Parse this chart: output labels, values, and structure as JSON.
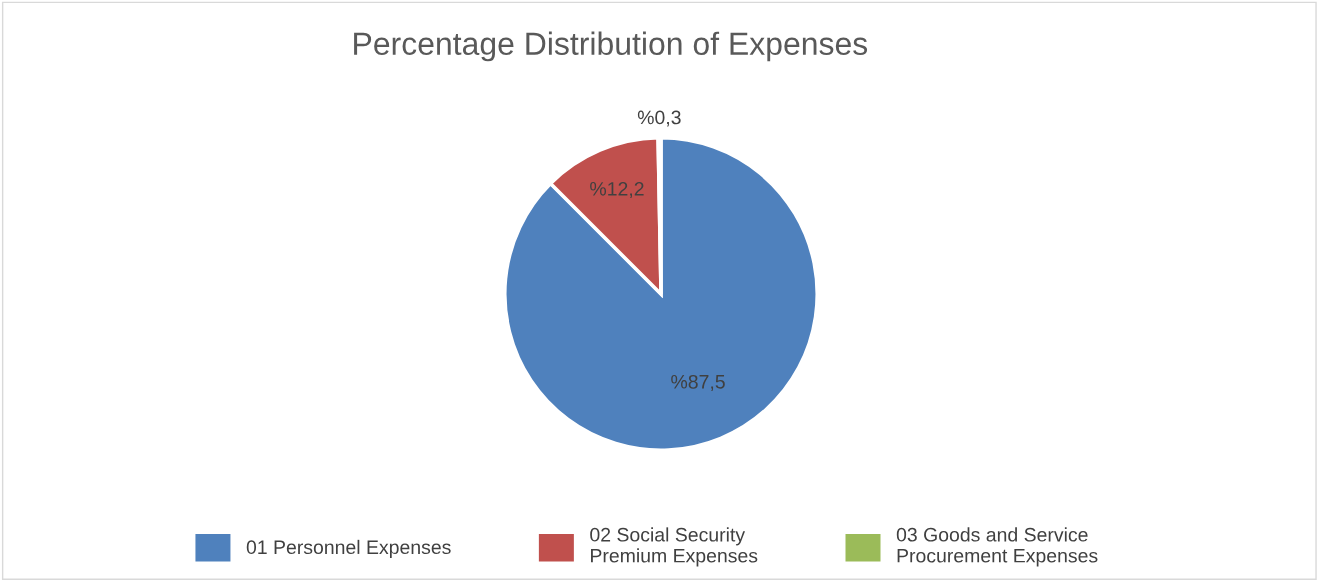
{
  "chart_data": {
    "type": "pie",
    "title": "Percentage Distribution of Expenses",
    "categories": [
      "01 Personnel Expenses",
      "02 Social Security Premium Expenses",
      "03 Goods and Service Procurement Expenses"
    ],
    "values": [
      87.5,
      12.2,
      0.3
    ],
    "colors": [
      "#4f81bd",
      "#c0504d",
      "#9bbb59"
    ],
    "value_labels": [
      "%87,5",
      "%12,2",
      "%0,3"
    ],
    "legend": "bottom"
  }
}
